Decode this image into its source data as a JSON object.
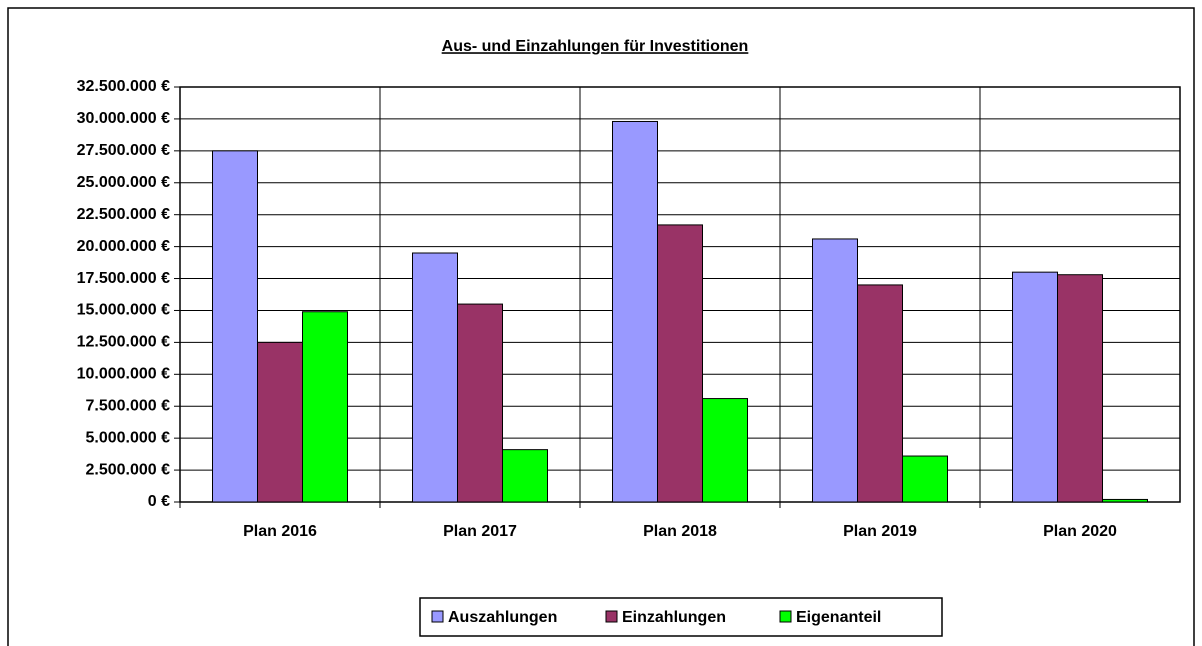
{
  "chart_data": {
    "type": "bar",
    "title": "Aus- und Einzahlungen für Investitionen",
    "categories": [
      "Plan 2016",
      "Plan 2017",
      "Plan 2018",
      "Plan 2019",
      "Plan 2020"
    ],
    "series": [
      {
        "name": "Auszahlungen",
        "color": "#9999ff",
        "values": [
          27500000,
          19500000,
          29800000,
          20600000,
          18000000
        ]
      },
      {
        "name": "Einzahlungen",
        "color": "#993366",
        "values": [
          12500000,
          15500000,
          21700000,
          17000000,
          17800000
        ]
      },
      {
        "name": "Eigenanteil",
        "color": "#00ff00",
        "values": [
          14900000,
          4100000,
          8100000,
          3600000,
          200000
        ]
      }
    ],
    "ylim": [
      0,
      32500000
    ],
    "yticks": [
      {
        "value": 0,
        "label": "0 €"
      },
      {
        "value": 2500000,
        "label": "2.500.000 €"
      },
      {
        "value": 5000000,
        "label": "5.000.000 €"
      },
      {
        "value": 7500000,
        "label": "7.500.000 €"
      },
      {
        "value": 10000000,
        "label": "10.000.000 €"
      },
      {
        "value": 12500000,
        "label": "12.500.000 €"
      },
      {
        "value": 15000000,
        "label": "15.000.000 €"
      },
      {
        "value": 17500000,
        "label": "17.500.000 €"
      },
      {
        "value": 20000000,
        "label": "20.000.000 €"
      },
      {
        "value": 22500000,
        "label": "22.500.000 €"
      },
      {
        "value": 25000000,
        "label": "25.000.000 €"
      },
      {
        "value": 27500000,
        "label": "27.500.000 €"
      },
      {
        "value": 30000000,
        "label": "30.000.000 €"
      },
      {
        "value": 32500000,
        "label": "32.500.000 €"
      }
    ],
    "grid": true,
    "legend": "bottom"
  }
}
